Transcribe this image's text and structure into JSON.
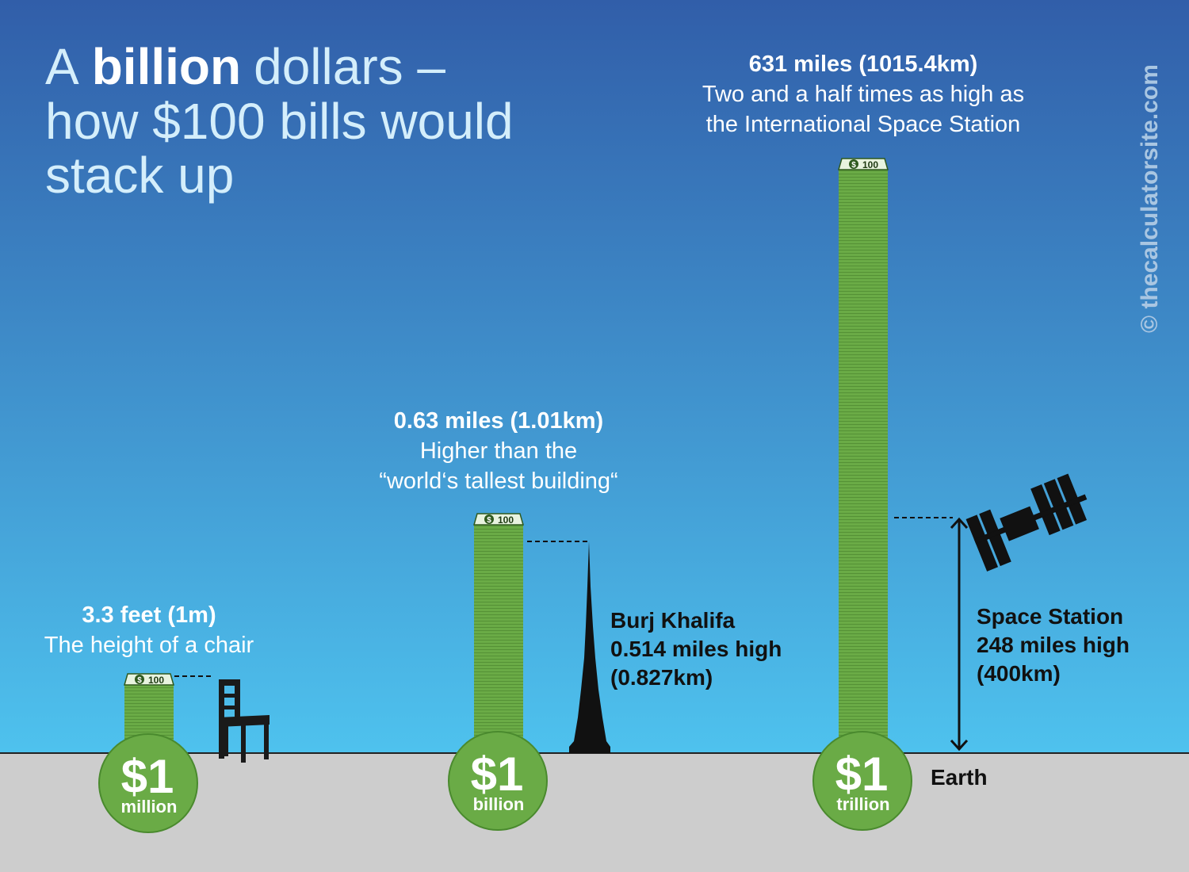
{
  "title": {
    "word1": "A",
    "bold": "billion",
    "word2": "dollars –",
    "line2": "how $100 bills would",
    "line3": "stack up"
  },
  "bill_dollar": "$",
  "bill_label": "100",
  "stacks": [
    {
      "amount": "$1",
      "unit": "million",
      "height": "3.3 feet (1m)",
      "caption": [
        "The height of a chair"
      ]
    },
    {
      "amount": "$1",
      "unit": "billion",
      "height": "0.63 miles (1.01km)",
      "caption": [
        "Higher than the",
        "“world‘s tallest building“"
      ]
    },
    {
      "amount": "$1",
      "unit": "trillion",
      "height": "631 miles (1015.4km)",
      "caption": [
        "Two and a half times as high as",
        "the International Space Station"
      ]
    }
  ],
  "comparisons": {
    "burj": [
      "Burj Khalifa",
      "0.514 miles high",
      "(0.827km)"
    ],
    "station": [
      "Space Station",
      "248 miles high",
      "(400km)"
    ],
    "earth": "Earth"
  },
  "watermark": "© thecalculatorsite.com"
}
